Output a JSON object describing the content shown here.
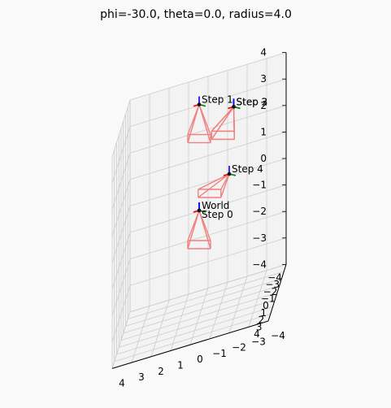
{
  "chart_data": {
    "type": "scatter",
    "title": "phi=-30.0, theta=0.0, radius=4.0",
    "xlim": [
      -4,
      4
    ],
    "ylim": [
      -4,
      4
    ],
    "zlim": [
      -4,
      4
    ],
    "x_ticks": [
      "−4",
      "−3",
      "−2",
      "−1",
      "0",
      "1",
      "2",
      "3",
      "4"
    ],
    "y_ticks": [
      "4",
      "3",
      "2",
      "1",
      "0",
      "−1",
      "−2",
      "−3",
      "−4"
    ],
    "z_ticks": [
      "4",
      "3",
      "2",
      "1",
      "0",
      "−1",
      "−2",
      "−3",
      "−4"
    ],
    "grid": true,
    "poses": [
      {
        "label": "World",
        "x": 0,
        "y": 0,
        "z": 0
      },
      {
        "label": "Step 0",
        "x": 0,
        "y": 0,
        "z": 0
      },
      {
        "label": "Step 1",
        "x": 0,
        "y": 0,
        "z": 4
      },
      {
        "label": "Step 2",
        "x": 2,
        "y": -2,
        "z": 4
      },
      {
        "label": "Step 3",
        "x": 2,
        "y": -2,
        "z": 4
      },
      {
        "label": "Step 4",
        "x": 4,
        "y": -2,
        "z": 2
      }
    ],
    "colors": {
      "frustum": "#f08080",
      "axis_x": "#ff0000",
      "axis_y": "#008000",
      "axis_z": "#0000ff",
      "grid": "#cccccc",
      "pane": "#f3f3f3"
    }
  }
}
